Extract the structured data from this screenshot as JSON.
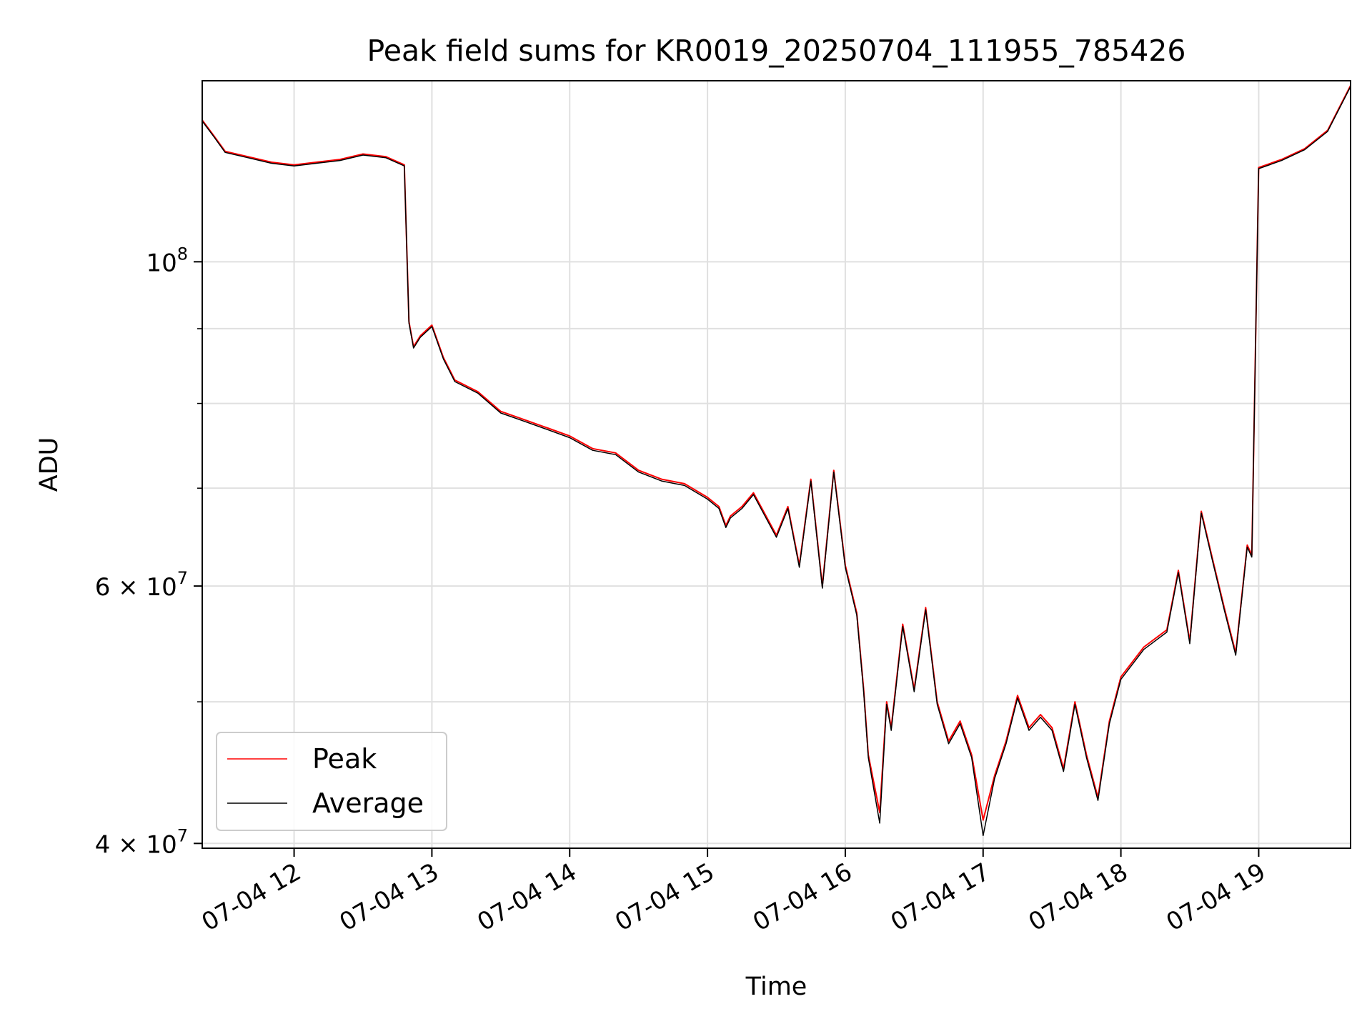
{
  "chart_data": {
    "type": "line",
    "title": "Peak field sums for KR0019_20250704_111955_785426",
    "xlabel": "Time",
    "ylabel": "ADU",
    "x_tick_labels": [
      "07-04 12",
      "07-04 13",
      "07-04 14",
      "07-04 15",
      "07-04 16",
      "07-04 17",
      "07-04 18",
      "07-04 19"
    ],
    "x_tick_values": [
      "2025-07-04 12:00",
      "2025-07-04 13:00",
      "2025-07-04 14:00",
      "2025-07-04 15:00",
      "2025-07-04 16:00",
      "2025-07-04 17:00",
      "2025-07-04 18:00",
      "2025-07-04 19:00"
    ],
    "xlim": [
      "2025-07-04 11:20",
      "2025-07-04 19:40"
    ],
    "y_scale": "log",
    "ylim": [
      39700000,
      133000000
    ],
    "y_major_ticks": [
      {
        "value": 40000000,
        "mantissa": "4",
        "exponent": "7"
      },
      {
        "value": 60000000,
        "mantissa": "6",
        "exponent": "7"
      },
      {
        "value": 100000000,
        "mantissa": "10",
        "exponent": "8"
      }
    ],
    "y_minor_ticks": [
      50000000,
      70000000,
      80000000,
      90000000
    ],
    "y_tick_times": "×",
    "grid": true,
    "legend_position": "lower-left",
    "series": [
      {
        "name": "Peak",
        "color": "#ff0000",
        "x": [
          "2025-07-04 11:20",
          "2025-07-04 11:25",
          "2025-07-04 11:30",
          "2025-07-04 11:40",
          "2025-07-04 11:50",
          "2025-07-04 12:00",
          "2025-07-04 12:10",
          "2025-07-04 12:20",
          "2025-07-04 12:30",
          "2025-07-04 12:40",
          "2025-07-04 12:48",
          "2025-07-04 12:50",
          "2025-07-04 12:52",
          "2025-07-04 12:55",
          "2025-07-04 13:00",
          "2025-07-04 13:05",
          "2025-07-04 13:10",
          "2025-07-04 13:20",
          "2025-07-04 13:30",
          "2025-07-04 13:40",
          "2025-07-04 13:50",
          "2025-07-04 14:00",
          "2025-07-04 14:10",
          "2025-07-04 14:20",
          "2025-07-04 14:30",
          "2025-07-04 14:40",
          "2025-07-04 14:50",
          "2025-07-04 15:00",
          "2025-07-04 15:05",
          "2025-07-04 15:08",
          "2025-07-04 15:10",
          "2025-07-04 15:15",
          "2025-07-04 15:20",
          "2025-07-04 15:30",
          "2025-07-04 15:35",
          "2025-07-04 15:40",
          "2025-07-04 15:45",
          "2025-07-04 15:50",
          "2025-07-04 15:55",
          "2025-07-04 16:00",
          "2025-07-04 16:05",
          "2025-07-04 16:08",
          "2025-07-04 16:10",
          "2025-07-04 16:15",
          "2025-07-04 16:18",
          "2025-07-04 16:20",
          "2025-07-04 16:25",
          "2025-07-04 16:30",
          "2025-07-04 16:35",
          "2025-07-04 16:40",
          "2025-07-04 16:45",
          "2025-07-04 16:50",
          "2025-07-04 16:55",
          "2025-07-04 17:00",
          "2025-07-04 17:05",
          "2025-07-04 17:10",
          "2025-07-04 17:15",
          "2025-07-04 17:20",
          "2025-07-04 17:25",
          "2025-07-04 17:30",
          "2025-07-04 17:35",
          "2025-07-04 17:40",
          "2025-07-04 17:45",
          "2025-07-04 17:50",
          "2025-07-04 17:55",
          "2025-07-04 18:00",
          "2025-07-04 18:10",
          "2025-07-04 18:20",
          "2025-07-04 18:25",
          "2025-07-04 18:30",
          "2025-07-04 18:35",
          "2025-07-04 18:40",
          "2025-07-04 18:45",
          "2025-07-04 18:50",
          "2025-07-04 18:55",
          "2025-07-04 18:57",
          "2025-07-04 19:00",
          "2025-07-04 19:10",
          "2025-07-04 19:20",
          "2025-07-04 19:30",
          "2025-07-04 19:40"
        ],
        "y": [
          125000000,
          122000000,
          119000000,
          118000000,
          117000000,
          116500000,
          117000000,
          117500000,
          118500000,
          118000000,
          116500000,
          91000000,
          87500000,
          89000000,
          90500000,
          86000000,
          83000000,
          81500000,
          79000000,
          78000000,
          77000000,
          76000000,
          74500000,
          74000000,
          72000000,
          71000000,
          70500000,
          69000000,
          68000000,
          66000000,
          67000000,
          68000000,
          69500000,
          65000000,
          68000000,
          62000000,
          71000000,
          60000000,
          72000000,
          62000000,
          57500000,
          51000000,
          46000000,
          42000000,
          50000000,
          48000000,
          56500000,
          51000000,
          58000000,
          50000000,
          47000000,
          48500000,
          46000000,
          41500000,
          44500000,
          47000000,
          50500000,
          48000000,
          49000000,
          48000000,
          45000000,
          50000000,
          46000000,
          43000000,
          48500000,
          52000000,
          54500000,
          56000000,
          61500000,
          55000000,
          67500000,
          62500000,
          58000000,
          54000000,
          64000000,
          63000000,
          116000000,
          117500000,
          119500000,
          123000000,
          132000000
        ]
      },
      {
        "name": "Average",
        "color": "#000000",
        "x": [
          "2025-07-04 11:20",
          "2025-07-04 11:25",
          "2025-07-04 11:30",
          "2025-07-04 11:40",
          "2025-07-04 11:50",
          "2025-07-04 12:00",
          "2025-07-04 12:10",
          "2025-07-04 12:20",
          "2025-07-04 12:30",
          "2025-07-04 12:40",
          "2025-07-04 12:48",
          "2025-07-04 12:50",
          "2025-07-04 12:52",
          "2025-07-04 12:55",
          "2025-07-04 13:00",
          "2025-07-04 13:05",
          "2025-07-04 13:10",
          "2025-07-04 13:20",
          "2025-07-04 13:30",
          "2025-07-04 13:40",
          "2025-07-04 13:50",
          "2025-07-04 14:00",
          "2025-07-04 14:10",
          "2025-07-04 14:20",
          "2025-07-04 14:30",
          "2025-07-04 14:40",
          "2025-07-04 14:50",
          "2025-07-04 15:00",
          "2025-07-04 15:05",
          "2025-07-04 15:08",
          "2025-07-04 15:10",
          "2025-07-04 15:15",
          "2025-07-04 15:20",
          "2025-07-04 15:30",
          "2025-07-04 15:35",
          "2025-07-04 15:40",
          "2025-07-04 15:45",
          "2025-07-04 15:50",
          "2025-07-04 15:55",
          "2025-07-04 16:00",
          "2025-07-04 16:05",
          "2025-07-04 16:08",
          "2025-07-04 16:10",
          "2025-07-04 16:15",
          "2025-07-04 16:18",
          "2025-07-04 16:20",
          "2025-07-04 16:25",
          "2025-07-04 16:30",
          "2025-07-04 16:35",
          "2025-07-04 16:40",
          "2025-07-04 16:45",
          "2025-07-04 16:50",
          "2025-07-04 16:55",
          "2025-07-04 17:00",
          "2025-07-04 17:05",
          "2025-07-04 17:10",
          "2025-07-04 17:15",
          "2025-07-04 17:20",
          "2025-07-04 17:25",
          "2025-07-04 17:30",
          "2025-07-04 17:35",
          "2025-07-04 17:40",
          "2025-07-04 17:45",
          "2025-07-04 17:50",
          "2025-07-04 17:55",
          "2025-07-04 18:00",
          "2025-07-04 18:10",
          "2025-07-04 18:20",
          "2025-07-04 18:25",
          "2025-07-04 18:30",
          "2025-07-04 18:35",
          "2025-07-04 18:40",
          "2025-07-04 18:45",
          "2025-07-04 18:50",
          "2025-07-04 18:55",
          "2025-07-04 18:57",
          "2025-07-04 19:00",
          "2025-07-04 19:10",
          "2025-07-04 19:20",
          "2025-07-04 19:30",
          "2025-07-04 19:40"
        ],
        "y": [
          124800000,
          121800000,
          118800000,
          117800000,
          116800000,
          116300000,
          116800000,
          117300000,
          118300000,
          117800000,
          116300000,
          90800000,
          87300000,
          88800000,
          90300000,
          85800000,
          82800000,
          81300000,
          78800000,
          77800000,
          76800000,
          75800000,
          74300000,
          73800000,
          71800000,
          70800000,
          70300000,
          68800000,
          67800000,
          65800000,
          66800000,
          67800000,
          69300000,
          64800000,
          67800000,
          61800000,
          70800000,
          59800000,
          71800000,
          61800000,
          57300000,
          50800000,
          45800000,
          41300000,
          49800000,
          47800000,
          56300000,
          50800000,
          57800000,
          49800000,
          46800000,
          48300000,
          45800000,
          40500000,
          44300000,
          46800000,
          50300000,
          47800000,
          48800000,
          47800000,
          44800000,
          49800000,
          45800000,
          42800000,
          48300000,
          51800000,
          54300000,
          55800000,
          61300000,
          54800000,
          67300000,
          62300000,
          57800000,
          53800000,
          63800000,
          62800000,
          115800000,
          117300000,
          119300000,
          122800000,
          131800000
        ]
      }
    ]
  }
}
